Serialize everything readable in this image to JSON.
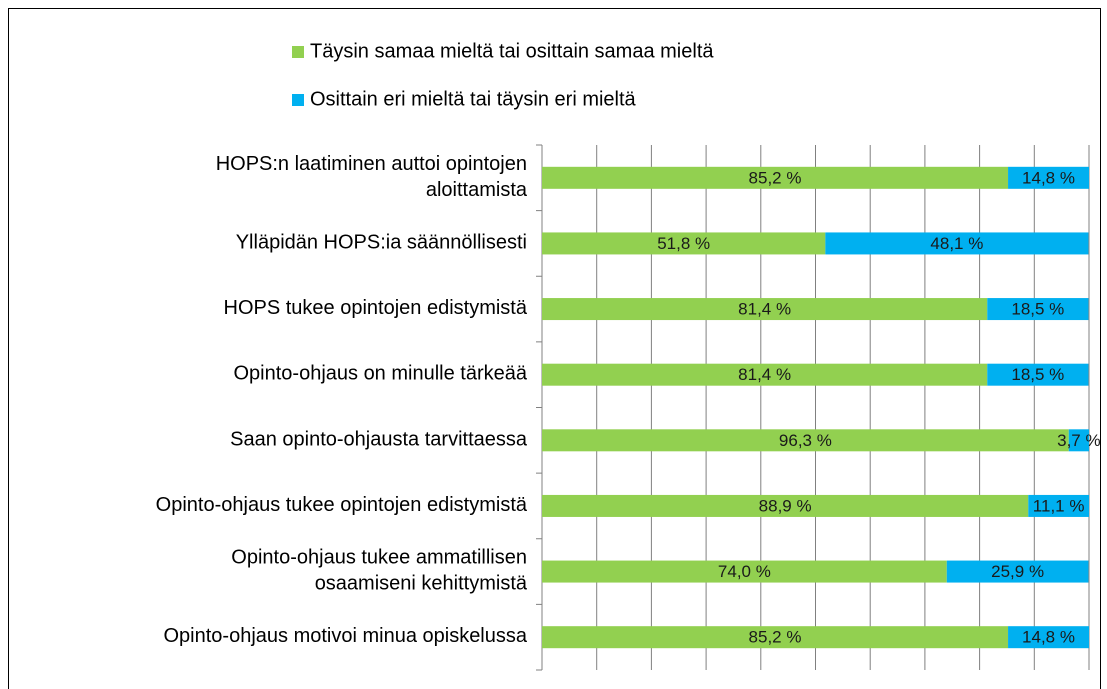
{
  "chart_data": {
    "type": "stacked-barh",
    "categories": [
      [
        "HOPS:n laatiminen auttoi opintojen",
        "aloittamista"
      ],
      [
        "Ylläpidän HOPS:ia säännöllisesti"
      ],
      [
        "HOPS tukee opintojen edistymistä"
      ],
      [
        "Opinto-ohjaus on minulle tärkeää"
      ],
      [
        "Saan opinto-ohjausta tarvittaessa"
      ],
      [
        "Opinto-ohjaus tukee opintojen edistymistä"
      ],
      [
        "Opinto-ohjaus tukee ammatillisen",
        "osaamiseni kehittymistä"
      ],
      [
        "Opinto-ohjaus motivoi minua opiskelussa"
      ]
    ],
    "series": [
      {
        "name": "Täysin samaa mieltä tai osittain samaa mieltä",
        "color": "#92d050",
        "values": [
          85.2,
          51.8,
          81.4,
          81.4,
          96.3,
          88.9,
          74.0,
          85.2
        ],
        "value_labels": [
          "85,2 %",
          "51,8 %",
          "81,4 %",
          "81,4 %",
          "96,3 %",
          "88,9 %",
          "74,0 %",
          "85,2 %"
        ]
      },
      {
        "name": "Osittain eri mieltä tai täysin eri mieltä",
        "color": "#00b0f0",
        "values": [
          14.8,
          48.1,
          18.5,
          18.5,
          3.7,
          11.1,
          25.9,
          14.8
        ],
        "value_labels": [
          "14,8 %",
          "48,1 %",
          "18,5 %",
          "18,5 %",
          "3,7 %",
          "11,1 %",
          "25,9 %",
          "14,8 %"
        ]
      }
    ],
    "xlim": [
      0,
      100
    ],
    "xticks": [
      0,
      10,
      20,
      30,
      40,
      50,
      60,
      70,
      80,
      90,
      100
    ],
    "grid": true,
    "legend": "top"
  }
}
